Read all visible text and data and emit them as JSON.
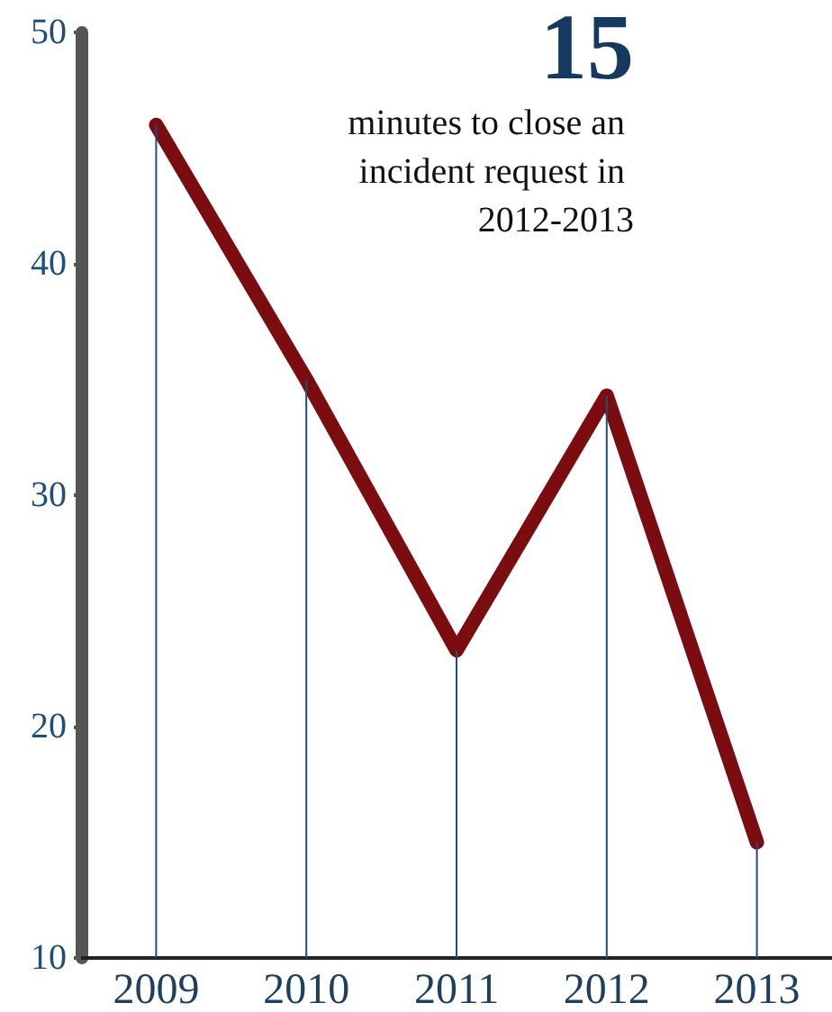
{
  "chart_data": {
    "type": "line",
    "title": "15",
    "subtitle": "minutes to close an incident request in 2012-2013",
    "categories": [
      "2009",
      "2010",
      "2011",
      "2012",
      "2013"
    ],
    "series": [
      {
        "type": "bar",
        "color": "#1f4e79",
        "values": [
          46,
          35,
          23.3,
          34.3,
          15
        ]
      },
      {
        "color": "#7b0c10",
        "values": [
          46,
          35,
          23.3,
          34.3,
          15
        ]
      }
    ],
    "ylim": [
      10,
      50
    ],
    "yticks": [
      10,
      20,
      30,
      40,
      50
    ],
    "grid": false,
    "marker": "none",
    "line_style": "solid"
  }
}
